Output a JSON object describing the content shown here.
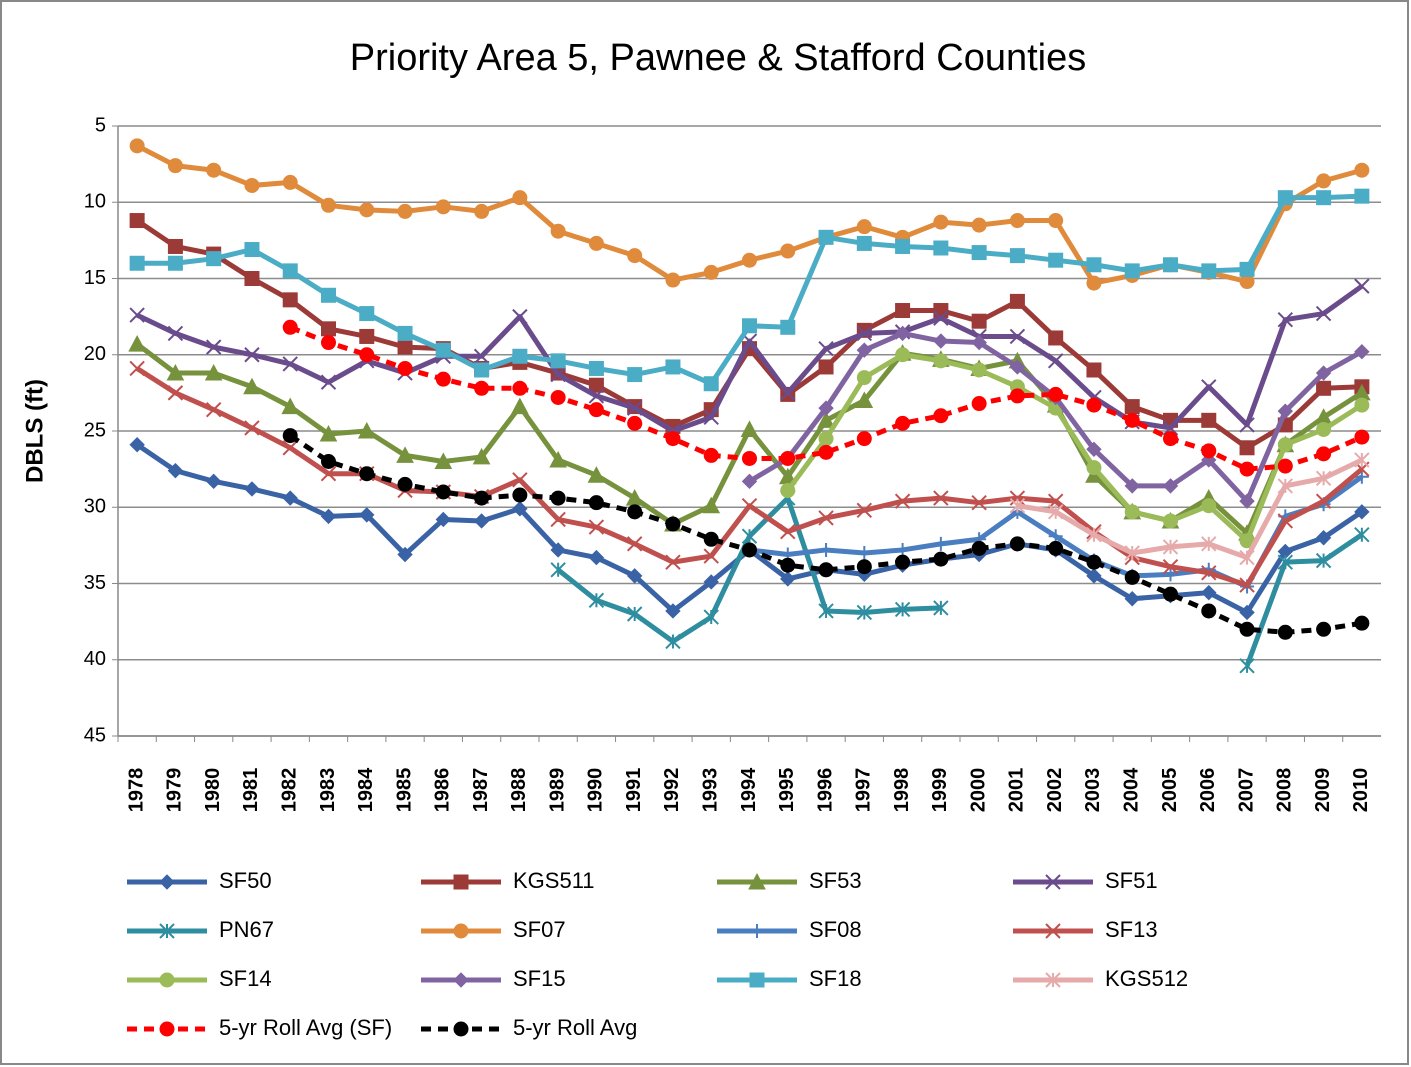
{
  "chart_data": {
    "type": "line",
    "title": "Priority Area 5, Pawnee & Stafford Counties",
    "y_label": "DBLS (ft)",
    "categories": [
      "1978",
      "1979",
      "1980",
      "1981",
      "1982",
      "1983",
      "1984",
      "1985",
      "1986",
      "1987",
      "1988",
      "1989",
      "1990",
      "1991",
      "1992",
      "1993",
      "1994",
      "1995",
      "1996",
      "1997",
      "1998",
      "1999",
      "2000",
      "2001",
      "2002",
      "2003",
      "2004",
      "2005",
      "2006",
      "2007",
      "2008",
      "2009",
      "2010"
    ],
    "ylim": [
      5,
      45
    ],
    "yticks": [
      5,
      10,
      15,
      20,
      25,
      30,
      35,
      40,
      45
    ],
    "y_reversed": true,
    "grid": true,
    "legend": "bottom",
    "series": [
      {
        "name": "SF50",
        "color": "#3a63a6",
        "marker": "diamond",
        "dashed": false,
        "values": [
          25.9,
          27.6,
          28.3,
          28.8,
          29.4,
          30.6,
          30.5,
          33.1,
          30.8,
          30.9,
          30.1,
          32.8,
          33.3,
          34.5,
          36.8,
          34.9,
          32.8,
          34.7,
          34.1,
          34.4,
          33.8,
          33.4,
          33.1,
          32.4,
          32.8,
          34.5,
          36.0,
          35.8,
          35.6,
          36.9,
          32.9,
          32.0,
          30.3
        ]
      },
      {
        "name": "KGS511",
        "color": "#9c3a37",
        "marker": "square",
        "dashed": false,
        "values": [
          11.2,
          12.9,
          13.4,
          15.0,
          16.4,
          18.3,
          18.8,
          19.5,
          19.6,
          20.9,
          20.5,
          21.2,
          22.0,
          23.4,
          24.7,
          23.6,
          19.6,
          22.6,
          20.8,
          18.4,
          17.1,
          17.1,
          17.8,
          16.5,
          18.9,
          21.0,
          23.4,
          24.3,
          24.3,
          26.1,
          24.6,
          22.2,
          22.1
        ]
      },
      {
        "name": "SF53",
        "color": "#77923c",
        "marker": "triangle",
        "dashed": false,
        "values": [
          19.3,
          21.2,
          21.2,
          22.1,
          23.4,
          25.2,
          25.0,
          26.6,
          27.0,
          26.7,
          23.4,
          26.9,
          27.9,
          29.4,
          31.1,
          29.9,
          24.9,
          28.0,
          24.3,
          23.0,
          19.9,
          20.3,
          20.9,
          20.4,
          23.3,
          27.9,
          30.3,
          30.9,
          29.4,
          31.7,
          25.9,
          24.1,
          22.5
        ]
      },
      {
        "name": "SF51",
        "color": "#6a4c8c",
        "marker": "x",
        "dashed": false,
        "values": [
          17.4,
          18.6,
          19.5,
          20.0,
          20.6,
          21.8,
          20.4,
          21.2,
          20.1,
          20.1,
          17.5,
          21.3,
          22.7,
          23.5,
          25.0,
          24.1,
          19.1,
          22.5,
          19.6,
          18.6,
          18.5,
          17.6,
          18.8,
          18.8,
          20.4,
          22.8,
          24.4,
          24.8,
          22.1,
          24.6,
          17.7,
          17.3,
          15.5
        ]
      },
      {
        "name": "PN67",
        "color": "#2e8ea0",
        "marker": "star",
        "dashed": false,
        "values": [
          null,
          null,
          null,
          null,
          null,
          null,
          null,
          null,
          null,
          null,
          null,
          34.1,
          36.1,
          37.0,
          38.8,
          37.2,
          31.9,
          29.4,
          36.8,
          36.9,
          36.7,
          36.6,
          null,
          null,
          null,
          null,
          null,
          null,
          null,
          40.4,
          33.6,
          33.5,
          31.8
        ]
      },
      {
        "name": "SF07",
        "color": "#e08a3c",
        "marker": "circle",
        "dashed": false,
        "values": [
          6.3,
          7.6,
          7.9,
          8.9,
          8.7,
          10.2,
          10.5,
          10.6,
          10.3,
          10.6,
          9.7,
          11.9,
          12.7,
          13.5,
          15.1,
          14.6,
          13.8,
          13.2,
          12.3,
          11.6,
          12.3,
          11.3,
          11.5,
          11.2,
          11.2,
          15.3,
          14.8,
          14.1,
          14.6,
          15.2,
          10.1,
          8.6,
          7.9
        ]
      },
      {
        "name": "SF08",
        "color": "#4a7ec0",
        "marker": "plus",
        "dashed": false,
        "values": [
          null,
          null,
          null,
          null,
          null,
          null,
          null,
          null,
          null,
          null,
          null,
          null,
          null,
          null,
          null,
          null,
          32.8,
          33.1,
          32.8,
          33.0,
          32.8,
          32.4,
          32.1,
          30.3,
          31.9,
          33.5,
          34.5,
          34.4,
          34.1,
          35.2,
          30.6,
          29.8,
          28.0
        ]
      },
      {
        "name": "SF13",
        "color": "#c0504d",
        "marker": "x",
        "dashed": false,
        "values": [
          20.9,
          22.5,
          23.6,
          24.8,
          26.1,
          27.8,
          27.8,
          28.9,
          29.0,
          29.3,
          28.2,
          30.8,
          31.3,
          32.4,
          33.6,
          33.2,
          29.9,
          31.6,
          30.7,
          30.2,
          29.6,
          29.4,
          29.7,
          29.4,
          29.6,
          31.6,
          33.3,
          33.9,
          34.3,
          35.1,
          30.9,
          29.6,
          27.5
        ]
      },
      {
        "name": "SF14",
        "color": "#9bbb59",
        "marker": "circle",
        "dashed": false,
        "values": [
          null,
          null,
          null,
          null,
          null,
          null,
          null,
          null,
          null,
          null,
          null,
          null,
          null,
          null,
          null,
          null,
          null,
          28.9,
          25.5,
          21.5,
          20.0,
          20.4,
          21.0,
          22.1,
          23.5,
          27.4,
          30.3,
          30.9,
          29.9,
          32.2,
          25.9,
          24.9,
          23.3
        ]
      },
      {
        "name": "SF15",
        "color": "#8064a2",
        "marker": "diamond",
        "dashed": false,
        "values": [
          null,
          null,
          null,
          null,
          null,
          null,
          null,
          null,
          null,
          null,
          null,
          null,
          null,
          null,
          null,
          null,
          28.3,
          26.8,
          23.5,
          19.7,
          18.6,
          19.1,
          19.2,
          20.8,
          22.8,
          26.2,
          28.6,
          28.6,
          26.9,
          29.6,
          23.7,
          21.2,
          19.8
        ]
      },
      {
        "name": "SF18",
        "color": "#4bacc6",
        "marker": "square",
        "dashed": false,
        "values": [
          14.0,
          14.0,
          13.7,
          13.1,
          14.5,
          16.1,
          17.3,
          18.6,
          19.7,
          21.0,
          20.1,
          20.4,
          20.9,
          21.3,
          20.8,
          21.9,
          18.1,
          18.2,
          12.3,
          12.7,
          12.9,
          13.0,
          13.3,
          13.5,
          13.8,
          14.1,
          14.5,
          14.1,
          14.5,
          14.4,
          9.7,
          9.7,
          9.6
        ]
      },
      {
        "name": "KGS512",
        "color": "#e6aaaa",
        "marker": "star",
        "dashed": false,
        "values": [
          null,
          null,
          null,
          null,
          null,
          null,
          null,
          null,
          null,
          null,
          null,
          null,
          null,
          null,
          null,
          null,
          null,
          null,
          null,
          null,
          null,
          null,
          null,
          29.9,
          30.3,
          31.8,
          33.0,
          32.6,
          32.4,
          33.3,
          28.6,
          28.1,
          26.9
        ]
      },
      {
        "name": "5-yr Roll Avg (SF)",
        "color": "#ff0000",
        "marker": "circle",
        "dashed": true,
        "values": [
          null,
          null,
          null,
          null,
          18.2,
          19.2,
          20.0,
          20.9,
          21.6,
          22.2,
          22.2,
          22.8,
          23.6,
          24.5,
          25.5,
          26.6,
          26.8,
          26.8,
          26.4,
          25.5,
          24.5,
          24.0,
          23.2,
          22.7,
          22.6,
          23.3,
          24.3,
          25.5,
          26.3,
          27.5,
          27.3,
          26.5,
          25.4
        ]
      },
      {
        "name": "5-yr Roll Avg",
        "color": "#000000",
        "marker": "circle",
        "dashed": true,
        "values": [
          null,
          null,
          null,
          null,
          25.3,
          27.0,
          27.8,
          28.5,
          29.0,
          29.4,
          29.2,
          29.4,
          29.7,
          30.3,
          31.1,
          32.1,
          32.8,
          33.8,
          34.1,
          33.9,
          33.6,
          33.4,
          32.7,
          32.4,
          32.7,
          33.6,
          34.6,
          35.7,
          36.8,
          38.0,
          38.2,
          38.0,
          37.6
        ]
      }
    ]
  }
}
